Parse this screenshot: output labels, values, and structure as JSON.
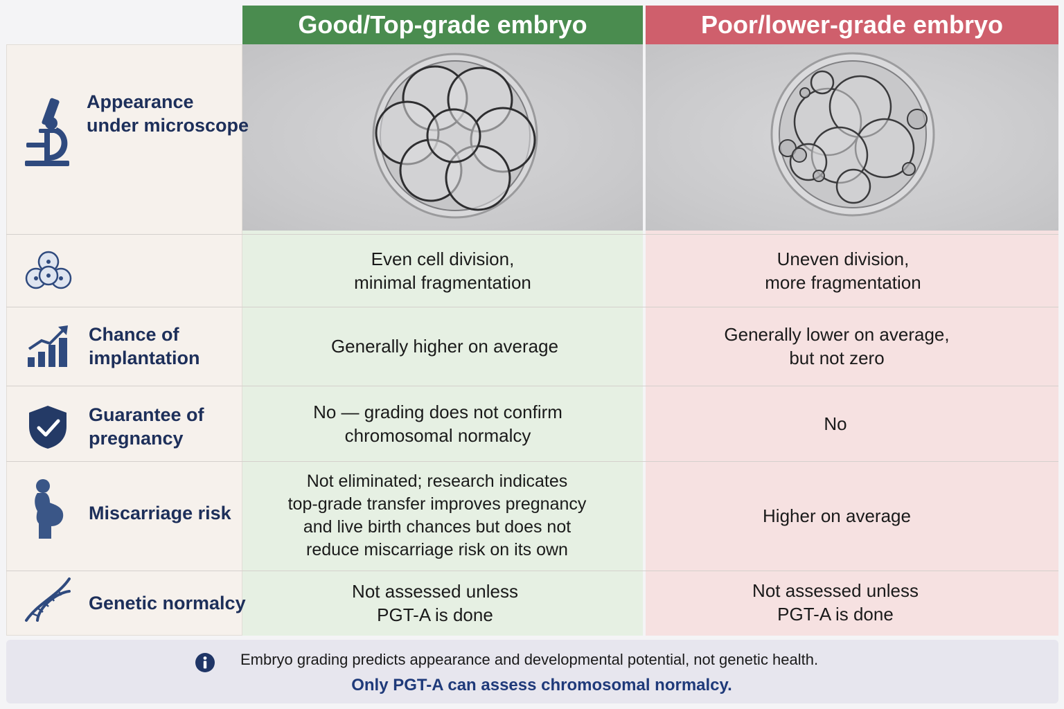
{
  "headers": {
    "good": "Good/Top-grade embryo",
    "poor": "Poor/lower-grade embryo"
  },
  "colors": {
    "good_header": "#4a8c4f",
    "poor_header": "#cf5f6c",
    "good_bg": "#e6f0e3",
    "poor_bg": "#f6e1e1",
    "label_text": "#1d2f5a",
    "icon": "#2f4a7e"
  },
  "rows": [
    {
      "icon": "microscope-icon",
      "label_line1": "Appearance",
      "label_line2": "under microscope",
      "good": "",
      "poor": ""
    },
    {
      "icon": "cells-icon",
      "label": "",
      "good": "Even cell division,\nminimal fragmentation",
      "poor": "Uneven division,\nmore fragmentation"
    },
    {
      "icon": "growth-chart-icon",
      "label_line1": "Chance of",
      "label_line2": "implantation",
      "good": "Generally higher on average",
      "poor": "Generally lower on average,\nbut not zero"
    },
    {
      "icon": "shield-check-icon",
      "label_line1": "Guarantee of",
      "label_line2": "pregnancy",
      "good": "No — grading does not confirm\nchromosomal normalcy",
      "poor": "No"
    },
    {
      "icon": "pregnant-woman-icon",
      "label": "Miscarriage risk",
      "good": "Not eliminated; research indicates\ntop-grade transfer improves pregnancy\nand live birth chances but does not\nreduce miscarriage risk on its own",
      "poor": "Higher on average"
    },
    {
      "icon": "dna-icon",
      "label": "Genetic normalcy",
      "good": "Not assessed unless\nPGT-A is done",
      "poor": "Not assessed unless\nPGT-A is done"
    }
  ],
  "footer": {
    "icon": "info-icon",
    "line1": "Embryo grading predicts appearance and developmental potential, not genetic health.",
    "line2": "Only PGT-A can assess chromosomal normalcy."
  }
}
